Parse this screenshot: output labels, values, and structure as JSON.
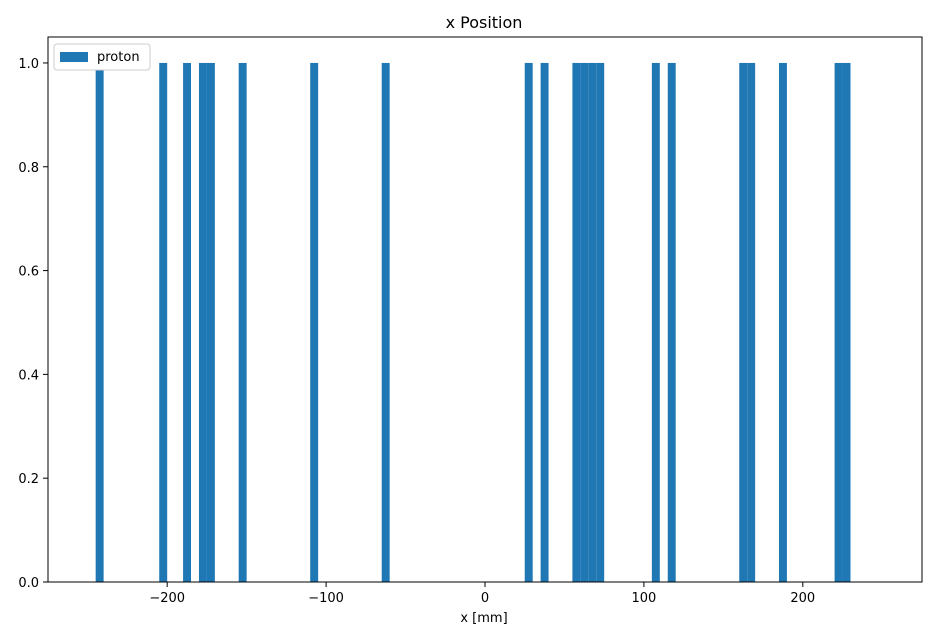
{
  "chart_data": {
    "type": "bar",
    "title": "x Position",
    "xlabel": "x [mm]",
    "ylabel": "",
    "xlim": [
      -275,
      275
    ],
    "ylim": [
      0,
      1.05
    ],
    "xticks": [
      -200,
      -100,
      0,
      100,
      200
    ],
    "xtick_labels": [
      "−200",
      "−100",
      "0",
      "100",
      "200"
    ],
    "yticks": [
      0.0,
      0.2,
      0.4,
      0.6,
      0.8,
      1.0
    ],
    "ytick_labels": [
      "0.0",
      "0.2",
      "0.4",
      "0.6",
      "0.8",
      "1.0"
    ],
    "grid": false,
    "legend_position": "top-left",
    "series": [
      {
        "name": "proton",
        "color": "#1f77b4",
        "bins": [
          {
            "x0": -245,
            "x1": -240,
            "value": 1
          },
          {
            "x0": -205,
            "x1": -200,
            "value": 1
          },
          {
            "x0": -190,
            "x1": -185,
            "value": 1
          },
          {
            "x0": -180,
            "x1": -175,
            "value": 1
          },
          {
            "x0": -175,
            "x1": -170,
            "value": 1
          },
          {
            "x0": -155,
            "x1": -150,
            "value": 1
          },
          {
            "x0": -110,
            "x1": -105,
            "value": 1
          },
          {
            "x0": -65,
            "x1": -60,
            "value": 1
          },
          {
            "x0": 25,
            "x1": 30,
            "value": 1
          },
          {
            "x0": 35,
            "x1": 40,
            "value": 1
          },
          {
            "x0": 55,
            "x1": 60,
            "value": 1
          },
          {
            "x0": 60,
            "x1": 65,
            "value": 1
          },
          {
            "x0": 65,
            "x1": 70,
            "value": 1
          },
          {
            "x0": 70,
            "x1": 75,
            "value": 1
          },
          {
            "x0": 105,
            "x1": 110,
            "value": 1
          },
          {
            "x0": 115,
            "x1": 120,
            "value": 1
          },
          {
            "x0": 160,
            "x1": 165,
            "value": 1
          },
          {
            "x0": 165,
            "x1": 170,
            "value": 1
          },
          {
            "x0": 185,
            "x1": 190,
            "value": 1
          },
          {
            "x0": 220,
            "x1": 225,
            "value": 1
          },
          {
            "x0": 225,
            "x1": 230,
            "value": 1
          }
        ]
      }
    ]
  }
}
